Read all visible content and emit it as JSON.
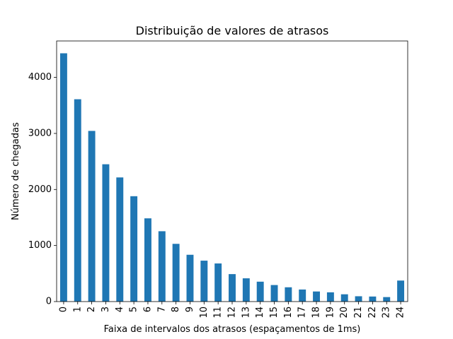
{
  "chart_data": {
    "type": "bar",
    "title": "Distribuição de valores de atrasos",
    "xlabel": "Faixa de intervalos dos atrasos (espaçamentos de 1ms)",
    "ylabel": "Número de chegadas",
    "categories": [
      "0",
      "1",
      "2",
      "3",
      "4",
      "5",
      "6",
      "7",
      "8",
      "9",
      "10",
      "11",
      "12",
      "13",
      "14",
      "15",
      "16",
      "17",
      "18",
      "19",
      "20",
      "21",
      "22",
      "23",
      "24"
    ],
    "values": [
      4430,
      3610,
      3045,
      2450,
      2215,
      1880,
      1485,
      1255,
      1030,
      835,
      730,
      680,
      490,
      415,
      355,
      295,
      255,
      215,
      180,
      165,
      130,
      95,
      90,
      80,
      375
    ],
    "ylim": [
      0,
      4650
    ],
    "yticks": [
      0,
      1000,
      2000,
      3000,
      4000
    ],
    "bar_color": "#1f77b4",
    "grid": false,
    "legend": "none"
  }
}
